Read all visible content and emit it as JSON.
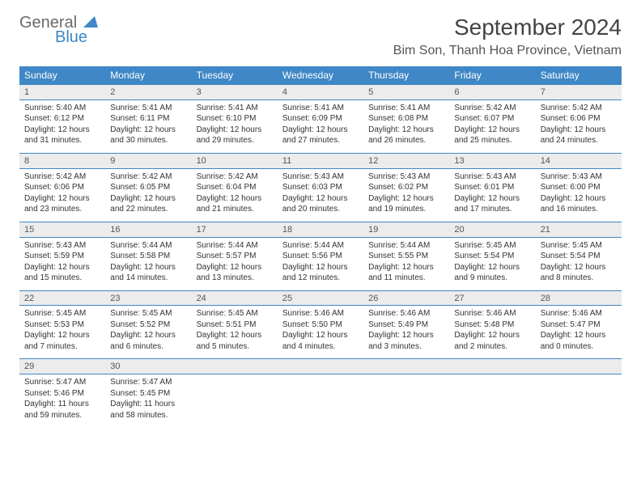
{
  "logo": {
    "general": "General",
    "blue": "Blue"
  },
  "title": "September 2024",
  "location": "Bim Son, Thanh Hoa Province, Vietnam",
  "colors": {
    "header_bg": "#3f87c6",
    "header_text": "#ffffff",
    "daynum_bg": "#ececec",
    "border": "#3f87c6",
    "logo_gray": "#6a6a6a",
    "logo_blue": "#3f87c6"
  },
  "weekdays": [
    "Sunday",
    "Monday",
    "Tuesday",
    "Wednesday",
    "Thursday",
    "Friday",
    "Saturday"
  ],
  "days": [
    {
      "n": "1",
      "sr": "Sunrise: 5:40 AM",
      "ss": "Sunset: 6:12 PM",
      "dl1": "Daylight: 12 hours",
      "dl2": "and 31 minutes."
    },
    {
      "n": "2",
      "sr": "Sunrise: 5:41 AM",
      "ss": "Sunset: 6:11 PM",
      "dl1": "Daylight: 12 hours",
      "dl2": "and 30 minutes."
    },
    {
      "n": "3",
      "sr": "Sunrise: 5:41 AM",
      "ss": "Sunset: 6:10 PM",
      "dl1": "Daylight: 12 hours",
      "dl2": "and 29 minutes."
    },
    {
      "n": "4",
      "sr": "Sunrise: 5:41 AM",
      "ss": "Sunset: 6:09 PM",
      "dl1": "Daylight: 12 hours",
      "dl2": "and 27 minutes."
    },
    {
      "n": "5",
      "sr": "Sunrise: 5:41 AM",
      "ss": "Sunset: 6:08 PM",
      "dl1": "Daylight: 12 hours",
      "dl2": "and 26 minutes."
    },
    {
      "n": "6",
      "sr": "Sunrise: 5:42 AM",
      "ss": "Sunset: 6:07 PM",
      "dl1": "Daylight: 12 hours",
      "dl2": "and 25 minutes."
    },
    {
      "n": "7",
      "sr": "Sunrise: 5:42 AM",
      "ss": "Sunset: 6:06 PM",
      "dl1": "Daylight: 12 hours",
      "dl2": "and 24 minutes."
    },
    {
      "n": "8",
      "sr": "Sunrise: 5:42 AM",
      "ss": "Sunset: 6:06 PM",
      "dl1": "Daylight: 12 hours",
      "dl2": "and 23 minutes."
    },
    {
      "n": "9",
      "sr": "Sunrise: 5:42 AM",
      "ss": "Sunset: 6:05 PM",
      "dl1": "Daylight: 12 hours",
      "dl2": "and 22 minutes."
    },
    {
      "n": "10",
      "sr": "Sunrise: 5:42 AM",
      "ss": "Sunset: 6:04 PM",
      "dl1": "Daylight: 12 hours",
      "dl2": "and 21 minutes."
    },
    {
      "n": "11",
      "sr": "Sunrise: 5:43 AM",
      "ss": "Sunset: 6:03 PM",
      "dl1": "Daylight: 12 hours",
      "dl2": "and 20 minutes."
    },
    {
      "n": "12",
      "sr": "Sunrise: 5:43 AM",
      "ss": "Sunset: 6:02 PM",
      "dl1": "Daylight: 12 hours",
      "dl2": "and 19 minutes."
    },
    {
      "n": "13",
      "sr": "Sunrise: 5:43 AM",
      "ss": "Sunset: 6:01 PM",
      "dl1": "Daylight: 12 hours",
      "dl2": "and 17 minutes."
    },
    {
      "n": "14",
      "sr": "Sunrise: 5:43 AM",
      "ss": "Sunset: 6:00 PM",
      "dl1": "Daylight: 12 hours",
      "dl2": "and 16 minutes."
    },
    {
      "n": "15",
      "sr": "Sunrise: 5:43 AM",
      "ss": "Sunset: 5:59 PM",
      "dl1": "Daylight: 12 hours",
      "dl2": "and 15 minutes."
    },
    {
      "n": "16",
      "sr": "Sunrise: 5:44 AM",
      "ss": "Sunset: 5:58 PM",
      "dl1": "Daylight: 12 hours",
      "dl2": "and 14 minutes."
    },
    {
      "n": "17",
      "sr": "Sunrise: 5:44 AM",
      "ss": "Sunset: 5:57 PM",
      "dl1": "Daylight: 12 hours",
      "dl2": "and 13 minutes."
    },
    {
      "n": "18",
      "sr": "Sunrise: 5:44 AM",
      "ss": "Sunset: 5:56 PM",
      "dl1": "Daylight: 12 hours",
      "dl2": "and 12 minutes."
    },
    {
      "n": "19",
      "sr": "Sunrise: 5:44 AM",
      "ss": "Sunset: 5:55 PM",
      "dl1": "Daylight: 12 hours",
      "dl2": "and 11 minutes."
    },
    {
      "n": "20",
      "sr": "Sunrise: 5:45 AM",
      "ss": "Sunset: 5:54 PM",
      "dl1": "Daylight: 12 hours",
      "dl2": "and 9 minutes."
    },
    {
      "n": "21",
      "sr": "Sunrise: 5:45 AM",
      "ss": "Sunset: 5:54 PM",
      "dl1": "Daylight: 12 hours",
      "dl2": "and 8 minutes."
    },
    {
      "n": "22",
      "sr": "Sunrise: 5:45 AM",
      "ss": "Sunset: 5:53 PM",
      "dl1": "Daylight: 12 hours",
      "dl2": "and 7 minutes."
    },
    {
      "n": "23",
      "sr": "Sunrise: 5:45 AM",
      "ss": "Sunset: 5:52 PM",
      "dl1": "Daylight: 12 hours",
      "dl2": "and 6 minutes."
    },
    {
      "n": "24",
      "sr": "Sunrise: 5:45 AM",
      "ss": "Sunset: 5:51 PM",
      "dl1": "Daylight: 12 hours",
      "dl2": "and 5 minutes."
    },
    {
      "n": "25",
      "sr": "Sunrise: 5:46 AM",
      "ss": "Sunset: 5:50 PM",
      "dl1": "Daylight: 12 hours",
      "dl2": "and 4 minutes."
    },
    {
      "n": "26",
      "sr": "Sunrise: 5:46 AM",
      "ss": "Sunset: 5:49 PM",
      "dl1": "Daylight: 12 hours",
      "dl2": "and 3 minutes."
    },
    {
      "n": "27",
      "sr": "Sunrise: 5:46 AM",
      "ss": "Sunset: 5:48 PM",
      "dl1": "Daylight: 12 hours",
      "dl2": "and 2 minutes."
    },
    {
      "n": "28",
      "sr": "Sunrise: 5:46 AM",
      "ss": "Sunset: 5:47 PM",
      "dl1": "Daylight: 12 hours",
      "dl2": "and 0 minutes."
    },
    {
      "n": "29",
      "sr": "Sunrise: 5:47 AM",
      "ss": "Sunset: 5:46 PM",
      "dl1": "Daylight: 11 hours",
      "dl2": "and 59 minutes."
    },
    {
      "n": "30",
      "sr": "Sunrise: 5:47 AM",
      "ss": "Sunset: 5:45 PM",
      "dl1": "Daylight: 11 hours",
      "dl2": "and 58 minutes."
    }
  ]
}
